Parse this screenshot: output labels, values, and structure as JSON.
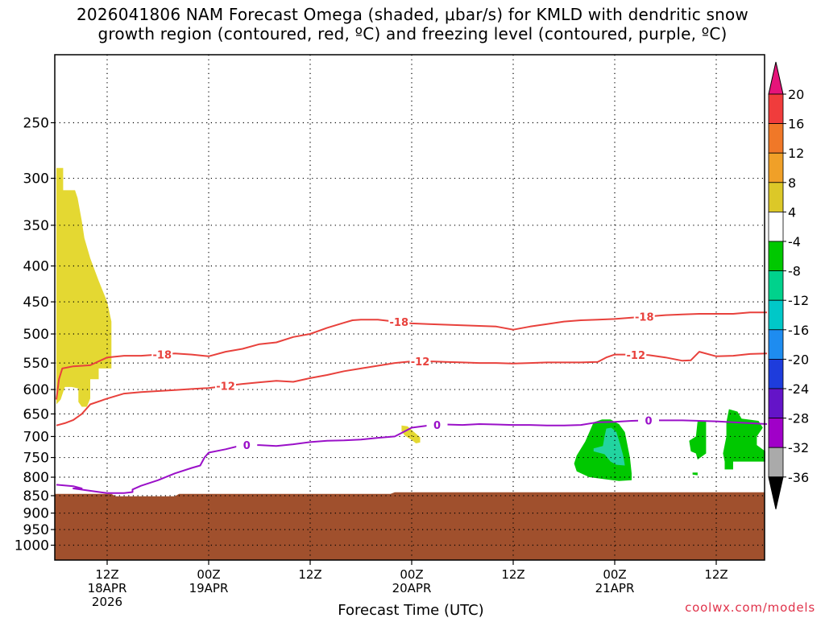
{
  "title": {
    "line1": "2026041806 NAM Forecast Omega (shaded, μbar/s) for KMLD with dendritic snow",
    "line2": "growth region (contoured, red, ºC) and freezing level (contoured, purple, ºC)"
  },
  "watermark": "coolwx.com/models",
  "chart_data": {
    "type": "contour",
    "xlabel": "Forecast Time (UTC)",
    "ylabel": "",
    "x_range_hours": [
      0,
      84
    ],
    "y_scale": "log-pressure",
    "y_range_hPa": [
      1050,
      200
    ],
    "yticks": [
      250,
      300,
      350,
      400,
      450,
      500,
      550,
      600,
      650,
      700,
      750,
      800,
      850,
      900,
      950,
      1000
    ],
    "xticks": [
      {
        "hour": 6,
        "line1": "12Z",
        "line2": "18APR",
        "line3": "2026"
      },
      {
        "hour": 18,
        "line1": "00Z",
        "line2": "19APR",
        "line3": ""
      },
      {
        "hour": 30,
        "line1": "12Z",
        "line2": "",
        "line3": ""
      },
      {
        "hour": 42,
        "line1": "00Z",
        "line2": "20APR",
        "line3": ""
      },
      {
        "hour": 54,
        "line1": "12Z",
        "line2": "",
        "line3": ""
      },
      {
        "hour": 66,
        "line1": "00Z",
        "line2": "21APR",
        "line3": ""
      },
      {
        "hour": 78,
        "line1": "12Z",
        "line2": "",
        "line3": ""
      }
    ],
    "grid": true,
    "colorbar": {
      "labels": [
        "20",
        "16",
        "12",
        "8",
        "4",
        "-4",
        "-8",
        "-12",
        "-16",
        "-20",
        "-24",
        "-28",
        "-32",
        "-36"
      ],
      "colors": [
        "#f03c3c",
        "#f07828",
        "#f0a028",
        "#dcc828",
        "#ffffff",
        "#00c800",
        "#00d28c",
        "#00c8c8",
        "#1e8cf0",
        "#1e3cdc",
        "#6414c8",
        "#a000c8",
        "#aaaaaa",
        "#000000"
      ],
      "top_arrow_color": "#e6147a",
      "bottom_arrow_color": "#000000"
    },
    "series": [
      {
        "name": "-18",
        "color": "#e8413c",
        "points": [
          [
            0,
            620
          ],
          [
            0.3,
            580
          ],
          [
            0.7,
            560
          ],
          [
            2,
            556
          ],
          [
            4,
            554
          ],
          [
            6,
            540
          ],
          [
            8,
            537
          ],
          [
            10,
            537
          ],
          [
            12,
            535
          ],
          [
            14,
            533
          ],
          [
            16,
            535
          ],
          [
            18,
            538
          ],
          [
            20,
            530
          ],
          [
            22,
            525
          ],
          [
            24,
            517
          ],
          [
            26,
            514
          ],
          [
            28,
            505
          ],
          [
            30,
            500
          ],
          [
            32,
            490
          ],
          [
            34,
            482
          ],
          [
            35,
            478
          ],
          [
            36,
            477
          ],
          [
            38,
            477
          ],
          [
            40,
            480
          ],
          [
            42,
            483
          ],
          [
            44,
            484
          ],
          [
            46,
            485
          ],
          [
            48,
            486
          ],
          [
            50,
            487
          ],
          [
            52,
            488
          ],
          [
            54,
            493
          ],
          [
            56,
            488
          ],
          [
            58,
            484
          ],
          [
            60,
            480
          ],
          [
            62,
            478
          ],
          [
            64,
            477
          ],
          [
            66,
            476
          ],
          [
            68,
            474
          ],
          [
            70,
            472
          ],
          [
            72,
            470
          ],
          [
            74,
            469
          ],
          [
            76,
            468
          ],
          [
            78,
            468
          ],
          [
            80,
            468
          ],
          [
            82,
            466
          ],
          [
            84,
            466
          ]
        ]
      },
      {
        "name": "-12",
        "color": "#e8413c",
        "points": [
          [
            0,
            675
          ],
          [
            1,
            670
          ],
          [
            2,
            663
          ],
          [
            3,
            650
          ],
          [
            3.5,
            640
          ],
          [
            4,
            630
          ],
          [
            6,
            618
          ],
          [
            8,
            608
          ],
          [
            10,
            605
          ],
          [
            12,
            603
          ],
          [
            14,
            601
          ],
          [
            16,
            599
          ],
          [
            18,
            597
          ],
          [
            20,
            593
          ],
          [
            22,
            589
          ],
          [
            24,
            586
          ],
          [
            26,
            583
          ],
          [
            28,
            585
          ],
          [
            30,
            578
          ],
          [
            32,
            572
          ],
          [
            34,
            565
          ],
          [
            36,
            560
          ],
          [
            38,
            555
          ],
          [
            40,
            550
          ],
          [
            42,
            547
          ],
          [
            44,
            547
          ],
          [
            46,
            548
          ],
          [
            48,
            549
          ],
          [
            50,
            550
          ],
          [
            52,
            550
          ],
          [
            54,
            551
          ],
          [
            56,
            550
          ],
          [
            58,
            549
          ],
          [
            60,
            549
          ],
          [
            62,
            549
          ],
          [
            64,
            548
          ],
          [
            65,
            540
          ],
          [
            66,
            535
          ],
          [
            68,
            535
          ],
          [
            70,
            536
          ],
          [
            72,
            540
          ],
          [
            74,
            546
          ],
          [
            75,
            545
          ],
          [
            76,
            530
          ],
          [
            78,
            538
          ],
          [
            80,
            537
          ],
          [
            82,
            534
          ],
          [
            84,
            533
          ]
        ]
      },
      {
        "name": "0",
        "color": "#9a10c8",
        "points": [
          [
            0,
            820
          ],
          [
            2,
            824
          ],
          [
            3,
            830
          ],
          [
            2,
            830
          ],
          [
            6,
            843
          ],
          [
            8,
            843
          ],
          [
            9,
            840
          ],
          [
            9,
            833
          ],
          [
            10,
            823
          ],
          [
            12,
            808
          ],
          [
            14,
            790
          ],
          [
            16,
            776
          ],
          [
            17,
            770
          ],
          [
            17.5,
            750
          ],
          [
            18,
            738
          ],
          [
            20,
            730
          ],
          [
            22,
            720
          ],
          [
            24,
            720
          ],
          [
            26,
            722
          ],
          [
            28,
            718
          ],
          [
            30,
            713
          ],
          [
            32,
            710
          ],
          [
            34,
            709
          ],
          [
            36,
            707
          ],
          [
            38,
            703
          ],
          [
            40,
            700
          ],
          [
            41,
            690
          ],
          [
            42,
            680
          ],
          [
            44,
            675
          ],
          [
            46,
            673
          ],
          [
            48,
            674
          ],
          [
            50,
            672
          ],
          [
            52,
            673
          ],
          [
            54,
            674
          ],
          [
            56,
            674
          ],
          [
            58,
            675
          ],
          [
            60,
            675
          ],
          [
            62,
            674
          ],
          [
            64,
            668
          ],
          [
            66,
            667
          ],
          [
            68,
            665
          ],
          [
            70,
            664
          ],
          [
            72,
            664
          ],
          [
            74,
            664
          ],
          [
            76,
            665
          ],
          [
            78,
            666
          ],
          [
            80,
            668
          ],
          [
            82,
            670
          ],
          [
            84,
            672
          ]
        ]
      }
    ],
    "shaded_regions": [
      {
        "level": "4 to 8",
        "color": "#e4d832"
      },
      {
        "level": "-4 to -8",
        "color": "#00c800"
      },
      {
        "level": "-8 to -12",
        "color": "#22d4a0"
      }
    ],
    "terrain": {
      "color": "#a0502d",
      "top_hPa": 845
    }
  }
}
